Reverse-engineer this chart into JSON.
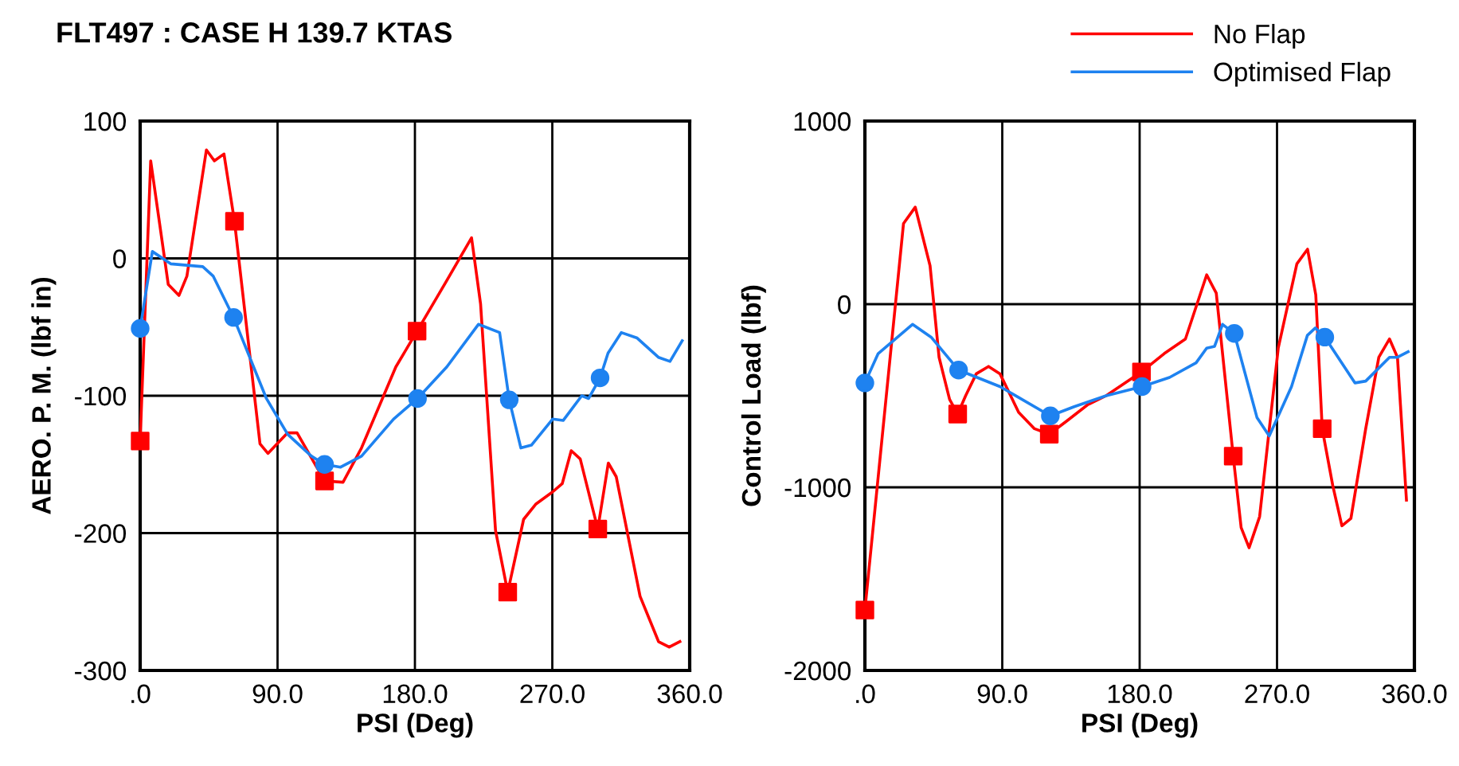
{
  "chart_data": [
    {
      "type": "line",
      "title": "FLT497 : CASE H 139.7 KTAS",
      "xlabel": "PSI (Deg)",
      "ylabel": "AERO. P. M. (lbf in)",
      "xlim": [
        0,
        360
      ],
      "xticks": [
        {
          "value": 0,
          "label": ".0"
        },
        {
          "value": 90,
          "label": "90.0"
        },
        {
          "value": 180,
          "label": "180.0"
        },
        {
          "value": 270,
          "label": "270.0"
        },
        {
          "value": 360,
          "label": "360.0"
        }
      ],
      "ylim": [
        -300,
        100
      ],
      "yticks": [
        -300,
        -200,
        -100,
        0,
        100
      ],
      "grid": true,
      "marker": "none",
      "series": [
        {
          "color": "#ff0000",
          "x": [
            0,
            6.9,
            18.4,
            25.4,
            30.6,
            43.4,
            48.6,
            54.9,
            61.8,
            78.5,
            83.7,
            96.6,
            102.8,
            120.8,
            132.9,
            145,
            167.5,
            181.4,
            200.4,
            217.1,
            223,
            232.8,
            240.8,
            251.2,
            259.1,
            270.2,
            276.5,
            282.4,
            288.3,
            299.8,
            306.7,
            311.9,
            327.5,
            339.6,
            346.6,
            353.6
          ],
          "values": [
            -133,
            71,
            -19,
            -27,
            -13,
            79,
            71,
            76,
            27,
            -135,
            -142,
            -127,
            -127,
            -162,
            -163,
            -138,
            -79,
            -53,
            -17,
            15,
            -33,
            -198,
            -243,
            -190,
            -179,
            -170,
            -164,
            -140,
            -146,
            -197,
            -149,
            -159,
            -246,
            -279,
            -283,
            -279
          ]
        },
        {
          "color": "#1e82f0",
          "x": [
            0,
            8,
            20.2,
            41,
            47.9,
            61.2,
            82.7,
            96.6,
            112.2,
            120.8,
            131.3,
            145,
            166,
            181.7,
            200.9,
            221.6,
            235.5,
            241.8,
            249.4,
            256.3,
            270.2,
            277.1,
            289.3,
            293.8,
            301.3,
            306.5,
            315.2,
            325.6,
            339.5,
            347.1,
            355.1
          ],
          "values": [
            -51,
            5,
            -4,
            -6,
            -13,
            -43,
            -102,
            -128,
            -144,
            -150,
            -152,
            -144,
            -117,
            -102,
            -79,
            -48,
            -54,
            -103,
            -138,
            -136,
            -117,
            -118,
            -100,
            -102,
            -87,
            -69,
            -54,
            -58,
            -72,
            -75,
            -60
          ]
        },
        {
          "type": "scatter",
          "marker": "square",
          "color": "#ff0000",
          "x": [
            0,
            61.8,
            120.8,
            181.4,
            240.8,
            299.8
          ],
          "values": [
            -133,
            27,
            -162,
            -53,
            -243,
            -197
          ]
        },
        {
          "type": "scatter",
          "marker": "circle",
          "color": "#1e82f0",
          "x": [
            0,
            61.2,
            120.8,
            181.7,
            241.8,
            301.3
          ],
          "values": [
            -51,
            -43,
            -150,
            -102,
            -103,
            -87
          ]
        }
      ]
    },
    {
      "type": "line",
      "xlabel": "PSI (Deg)",
      "ylabel": "Control Load (lbf)",
      "xlim": [
        0,
        360
      ],
      "xticks": [
        {
          "value": 0,
          "label": ".0"
        },
        {
          "value": 90,
          "label": "90.0"
        },
        {
          "value": 180,
          "label": "180.0"
        },
        {
          "value": 270,
          "label": "270.0"
        },
        {
          "value": 360,
          "label": "360.0"
        }
      ],
      "ylim": [
        -2000,
        1000
      ],
      "yticks": [
        -2000,
        -1000,
        0,
        1000
      ],
      "grid": true,
      "marker": "none",
      "legend": "top right",
      "series": [
        {
          "name": "No Flap",
          "color": "#ff0000",
          "x": [
            0,
            25.3,
            33,
            42.7,
            48.6,
            55.5,
            60.8,
            66,
            73,
            81,
            88.5,
            100.7,
            111.1,
            120.8,
            131.9,
            145.8,
            158,
            181.2,
            196.1,
            210,
            223.9,
            230.2,
            241.3,
            246.5,
            251.7,
            258.6,
            270.8,
            283,
            290,
            295.4,
            299.6,
            306.5,
            312.5,
            318.4,
            328.1,
            336.7,
            343.7,
            348.9,
            354.8
          ],
          "values": [
            -1670,
            440,
            530,
            210,
            -290,
            -520,
            -600,
            -500,
            -380,
            -340,
            -380,
            -590,
            -680,
            -710,
            -640,
            -550,
            -500,
            -370,
            -270,
            -190,
            160,
            60,
            -830,
            -1220,
            -1330,
            -1160,
            -240,
            220,
            300,
            50,
            -680,
            -990,
            -1210,
            -1170,
            -680,
            -290,
            -190,
            -290,
            -1070
          ]
        },
        {
          "name": "Optimised Flap",
          "color": "#1e82f0",
          "x": [
            0,
            8.7,
            31.2,
            43.4,
            61.4,
            88.5,
            121.5,
            137.1,
            158,
            181.6,
            199.6,
            217,
            223.9,
            229.1,
            234.3,
            242,
            256.9,
            264.9,
            279.5,
            289.9,
            295.1,
            301.3,
            321.1,
            328.1,
            343.7,
            348.9,
            355.9
          ],
          "values": [
            -430,
            -270,
            -110,
            -180,
            -360,
            -450,
            -610,
            -560,
            -500,
            -450,
            -400,
            -320,
            -240,
            -230,
            -110,
            -160,
            -620,
            -720,
            -450,
            -170,
            -130,
            -180,
            -430,
            -420,
            -290,
            -290,
            -260
          ]
        },
        {
          "type": "scatter",
          "marker": "square",
          "color": "#ff0000",
          "x": [
            0,
            60.8,
            120.8,
            181.2,
            241.3,
            299.6
          ],
          "values": [
            -1670,
            -600,
            -710,
            -370,
            -830,
            -680
          ]
        },
        {
          "type": "scatter",
          "marker": "circle",
          "color": "#1e82f0",
          "x": [
            0,
            61.4,
            121.5,
            181.6,
            242,
            301.3
          ],
          "values": [
            -430,
            -360,
            -610,
            -450,
            -160,
            -180
          ]
        }
      ]
    }
  ]
}
